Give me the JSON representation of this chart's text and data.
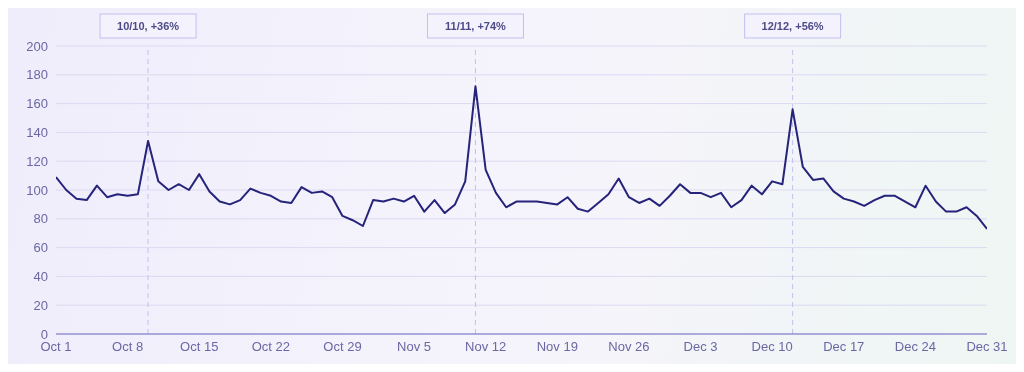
{
  "chart_data": {
    "type": "line",
    "x": [
      "--10-01",
      "--10-02",
      "--10-03",
      "--10-04",
      "--10-05",
      "--10-06",
      "--10-07",
      "--10-08",
      "--10-09",
      "--10-10",
      "--10-11",
      "--10-12",
      "--10-13",
      "--10-14",
      "--10-15",
      "--10-16",
      "--10-17",
      "--10-18",
      "--10-19",
      "--10-20",
      "--10-21",
      "--10-22",
      "--10-23",
      "--10-24",
      "--10-25",
      "--10-26",
      "--10-27",
      "--10-28",
      "--10-29",
      "--10-30",
      "--10-31",
      "--11-01",
      "--11-02",
      "--11-03",
      "--11-04",
      "--11-05",
      "--11-06",
      "--11-07",
      "--11-08",
      "--11-09",
      "--11-10",
      "--11-11",
      "--11-12",
      "--11-13",
      "--11-14",
      "--11-15",
      "--11-16",
      "--11-17",
      "--11-18",
      "--11-19",
      "--11-20",
      "--11-21",
      "--11-22",
      "--11-23",
      "--11-24",
      "--11-25",
      "--11-26",
      "--11-27",
      "--11-28",
      "--11-29",
      "--11-30",
      "--12-01",
      "--12-02",
      "--12-03",
      "--12-04",
      "--12-05",
      "--12-06",
      "--12-07",
      "--12-08",
      "--12-09",
      "--12-10",
      "--12-11",
      "--12-12",
      "--12-13",
      "--12-14",
      "--12-15",
      "--12-16",
      "--12-17",
      "--12-18",
      "--12-19",
      "--12-20",
      "--12-21",
      "--12-22",
      "--12-23",
      "--12-24",
      "--12-25",
      "--12-26",
      "--12-27",
      "--12-28",
      "--12-29",
      "--12-30",
      "--12-31"
    ],
    "series": [
      {
        "color": "#26237a",
        "values": [
          109,
          100,
          94,
          93,
          103,
          95,
          97,
          96,
          97,
          134,
          106,
          100,
          104,
          100,
          111,
          99,
          92,
          90,
          93,
          101,
          98,
          96,
          92,
          91,
          102,
          98,
          99,
          95,
          82,
          79,
          75,
          93,
          92,
          94,
          92,
          96,
          85,
          93,
          84,
          90,
          106,
          172,
          114,
          98,
          88,
          92,
          92,
          92,
          91,
          90,
          95,
          87,
          85,
          91,
          97,
          108,
          95,
          91,
          94,
          89,
          96,
          104,
          98,
          98,
          95,
          98,
          88,
          93,
          103,
          97,
          106,
          104,
          156,
          116,
          107,
          108,
          99,
          94,
          92,
          89,
          93,
          96,
          96,
          92,
          88,
          103,
          92,
          85,
          85,
          88,
          82,
          73
        ]
      }
    ],
    "xlim": [
      "--10-01",
      "--12-31"
    ],
    "xticks": [
      {
        "value": "--10-01",
        "label": "Oct 1"
      },
      {
        "value": "--10-08",
        "label": "Oct 8"
      },
      {
        "value": "--10-15",
        "label": "Oct 15"
      },
      {
        "value": "--10-22",
        "label": "Oct 22"
      },
      {
        "value": "--10-29",
        "label": "Oct 29"
      },
      {
        "value": "--11-05",
        "label": "Nov 5"
      },
      {
        "value": "--11-12",
        "label": "Nov 12"
      },
      {
        "value": "--11-19",
        "label": "Nov 19"
      },
      {
        "value": "--11-26",
        "label": "Nov 26"
      },
      {
        "value": "--12-03",
        "label": "Dec 3"
      },
      {
        "value": "--12-10",
        "label": "Dec 10"
      },
      {
        "value": "--12-17",
        "label": "Dec 17"
      },
      {
        "value": "--12-24",
        "label": "Dec 24"
      },
      {
        "value": "--12-31",
        "label": "Dec 31"
      }
    ],
    "ylim": [
      0,
      200
    ],
    "yticks": [
      0,
      20,
      40,
      60,
      80,
      100,
      120,
      140,
      160,
      180,
      200
    ],
    "grid": "y",
    "legend": false,
    "marker": "none",
    "line_style": "solid",
    "ref_lines": [
      {
        "axis": "x",
        "value": "--10-10",
        "label": "10/10, +36%",
        "color": "#c4bff0",
        "line_style": "dashed"
      },
      {
        "axis": "x",
        "value": "--11-11",
        "label": "11/11, +74%",
        "color": "#c4bff0",
        "line_style": "dashed"
      },
      {
        "axis": "x",
        "value": "--12-12",
        "label": "12/12, +56%",
        "color": "#c4bff0",
        "line_style": "dashed"
      }
    ]
  }
}
